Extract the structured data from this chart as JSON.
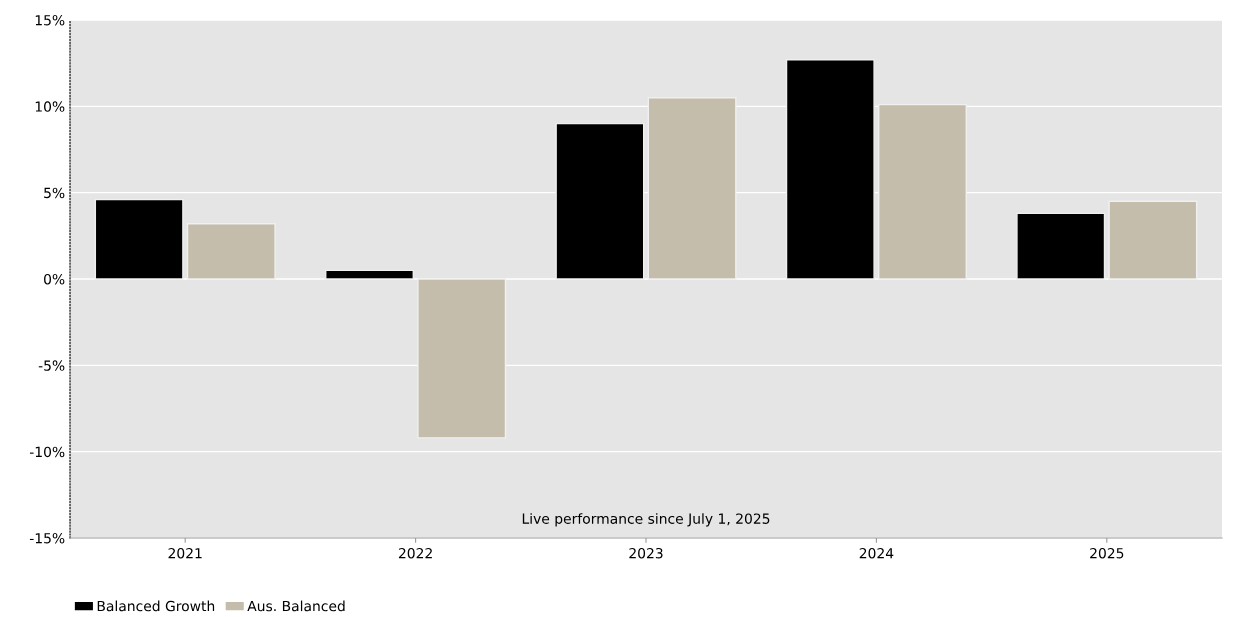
{
  "chart_data": {
    "type": "bar",
    "categories": [
      "2021",
      "2022",
      "2023",
      "2024",
      "2025"
    ],
    "series": [
      {
        "name": "Balanced Growth",
        "color": "#000000",
        "values": [
          4.6,
          0.5,
          9.0,
          12.7,
          3.8
        ]
      },
      {
        "name": "Aus. Balanced",
        "color": "#c4bdab",
        "values": [
          3.2,
          -9.2,
          10.5,
          10.1,
          4.5
        ]
      }
    ],
    "ylim": [
      -15,
      15
    ],
    "yticks": [
      {
        "value": -15,
        "label": "-15%"
      },
      {
        "value": -10,
        "label": "-10%"
      },
      {
        "value": -5,
        "label": "-5%"
      },
      {
        "value": 0,
        "label": "0%"
      },
      {
        "value": 5,
        "label": "5%"
      },
      {
        "value": 10,
        "label": "10%"
      },
      {
        "value": 15,
        "label": "15%"
      }
    ],
    "grid": "y",
    "legend": "bottom left",
    "annotations": [
      "Live performance since July 1, 2025"
    ]
  }
}
